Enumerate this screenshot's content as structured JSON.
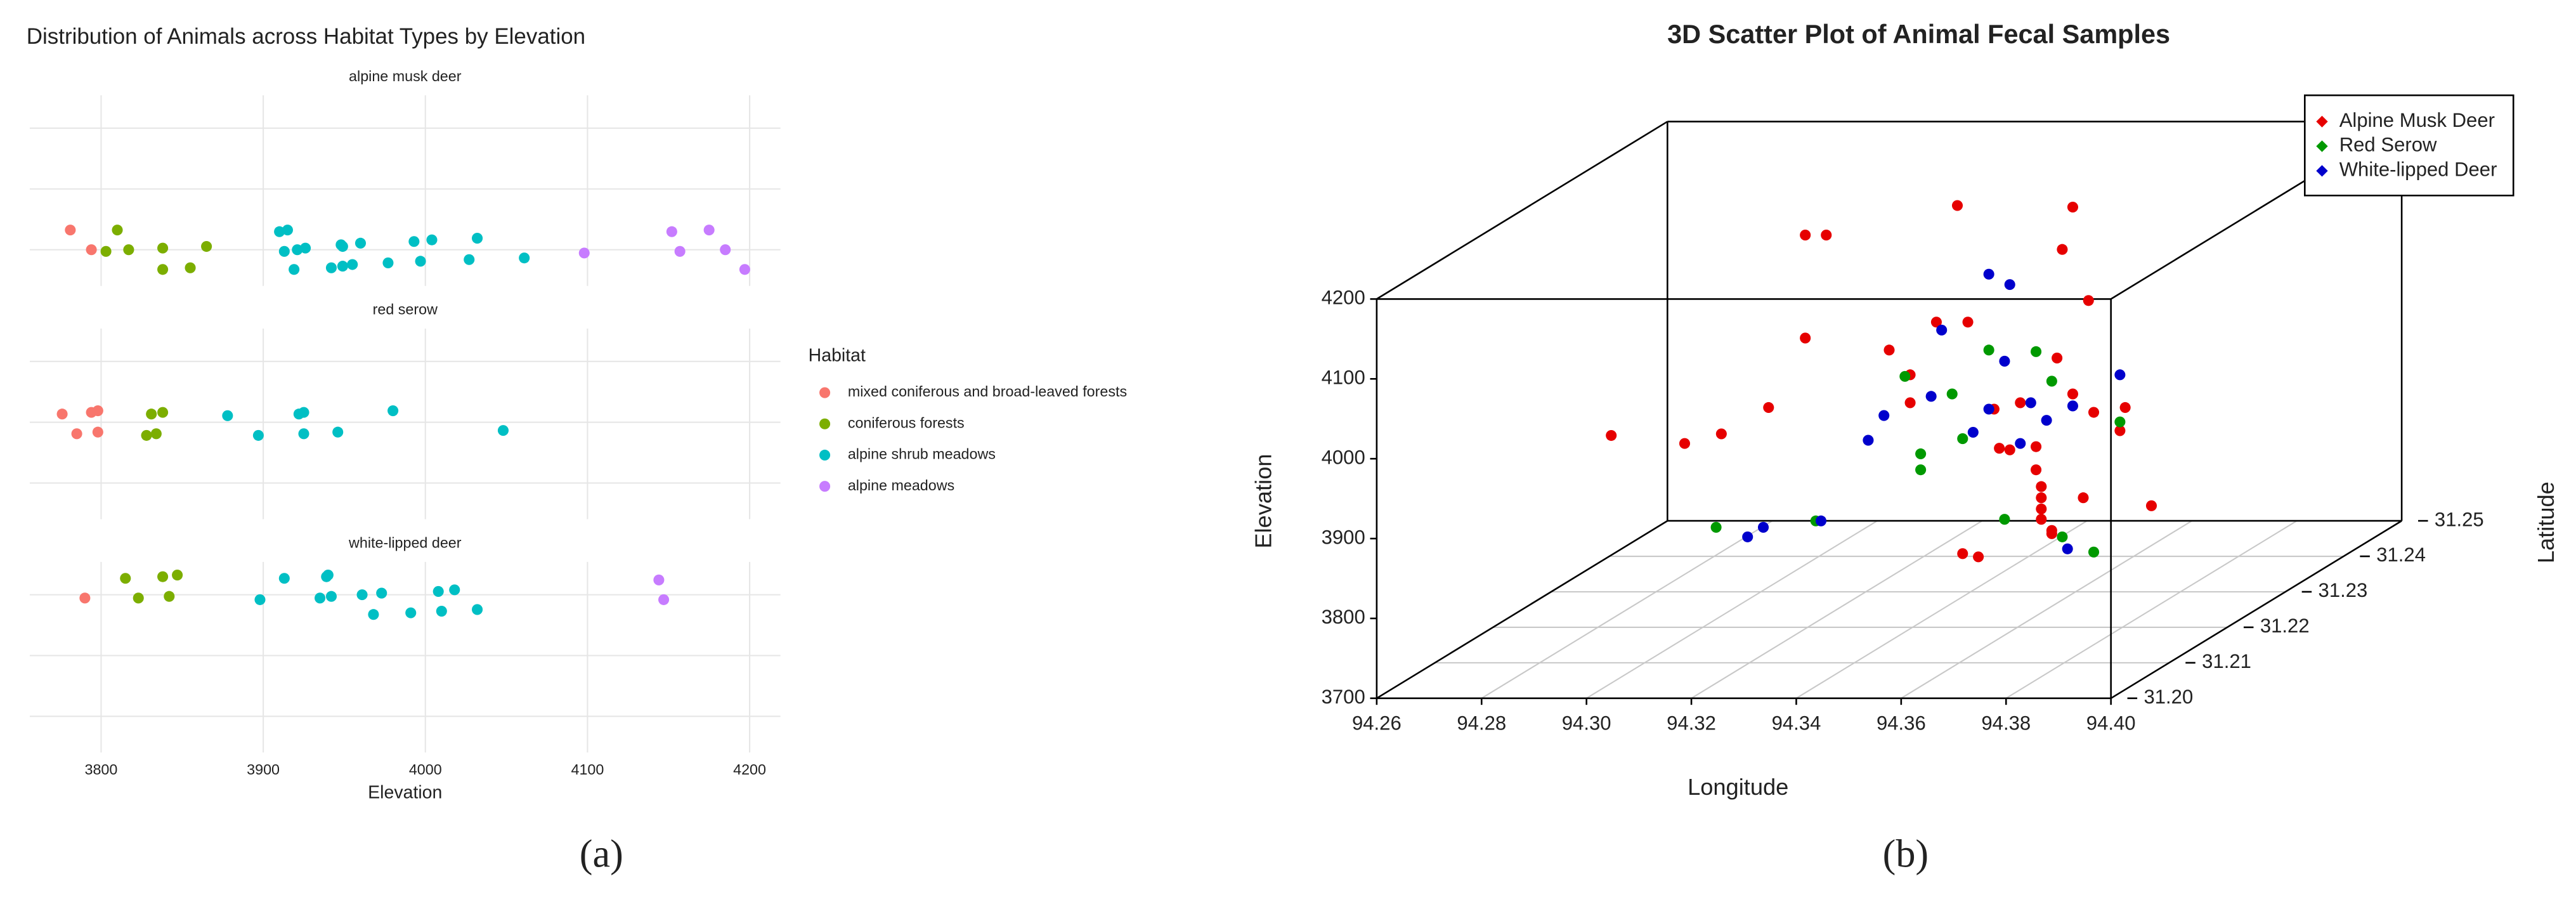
{
  "chart_data": [
    {
      "type": "strip",
      "title": "Distribution of Animals across Habitat Types by Elevation",
      "caption": "(a)",
      "x_label": "Elevation",
      "legend_title": "Habitat",
      "xlim": [
        3756,
        4219
      ],
      "xticks": [
        3800,
        3900,
        4000,
        4100,
        4200
      ],
      "grid": true,
      "series": [
        {
          "name": "mixed coniferous and broad-leaved forests",
          "color": "#F8766D"
        },
        {
          "name": "coniferous forests",
          "color": "#7CAE00"
        },
        {
          "name": "alpine shrub meadows",
          "color": "#00BFC4"
        },
        {
          "name": "alpine meadows",
          "color": "#C77CFF"
        }
      ],
      "facets": [
        {
          "title": "alpine musk deer",
          "values": [
            [
              3781,
              3794
            ],
            [
              3803,
              3810,
              3817,
              3838,
              3838,
              3855,
              3865
            ],
            [
              3910,
              3913,
              3915,
              3921,
              3919,
              3926,
              3942,
              3949,
              3949,
              3948,
              3955,
              3960,
              3977,
              3993,
              3997,
              4004,
              4027,
              4032,
              4061
            ],
            [
              4098,
              4152,
              4157,
              4175,
              4185,
              4197
            ]
          ]
        },
        {
          "title": "red serow",
          "values": [
            [
              3776,
              3785,
              3794,
              3798,
              3798
            ],
            [
              3828,
              3831,
              3834,
              3838
            ],
            [
              3878,
              3897,
              3922,
              3925,
              3925,
              3946,
              3980,
              4048
            ],
            []
          ]
        },
        {
          "title": "white-lipped deer",
          "values": [
            [
              3790
            ],
            [
              3815,
              3823,
              3838,
              3842,
              3847
            ],
            [
              3898,
              3913,
              3935,
              3939,
              3942,
              3940,
              3961,
              3968,
              3973,
              3991,
              4008,
              4010,
              4018,
              4032
            ],
            [
              4144,
              4147
            ]
          ]
        }
      ]
    },
    {
      "type": "scatter3d",
      "title": "3D Scatter Plot of Animal Fecal Samples",
      "caption": "(b)",
      "x_label": "Longitude",
      "y_label": "Latitude",
      "z_label": "Elevation",
      "xlim": [
        94.26,
        94.4
      ],
      "ylim": [
        31.2,
        31.25
      ],
      "zlim": [
        3700,
        4200
      ],
      "xticks": [
        94.26,
        94.28,
        {
          "value": 94.3,
          "label": "94.30"
        },
        94.32,
        94.34,
        94.36,
        94.38,
        {
          "value": 94.4,
          "label": "94.40"
        }
      ],
      "yticks": [
        {
          "value": 31.2,
          "label": "31.20"
        },
        31.21,
        31.22,
        31.23,
        31.24,
        31.25
      ],
      "zticks": [
        3700,
        3800,
        3900,
        4000,
        4100,
        4200
      ],
      "series": [
        {
          "name": "Alpine Musk Deer",
          "color": "#e60000",
          "x": [
            94.277,
            94.291,
            94.298,
            94.307,
            94.314,
            94.318,
            94.314,
            94.33,
            94.334,
            94.334,
            94.339,
            94.345,
            94.343,
            94.365,
            94.363,
            94.368,
            94.362,
            94.365,
            94.369,
            94.375,
            94.374,
            94.35,
            94.355,
            94.351,
            94.353,
            94.358,
            94.358,
            94.359,
            94.359,
            94.359,
            94.359,
            94.367,
            94.38,
            94.361,
            94.361,
            94.344,
            94.347
          ],
          "y": [
            31.225,
            31.225,
            31.225,
            31.225,
            31.225,
            31.225,
            31.225,
            31.225,
            31.225,
            31.225,
            31.225,
            31.225,
            31.225,
            31.225,
            31.225,
            31.225,
            31.225,
            31.225,
            31.225,
            31.225,
            31.225,
            31.225,
            31.225,
            31.225,
            31.225,
            31.225,
            31.225,
            31.225,
            31.225,
            31.225,
            31.225,
            31.225,
            31.225,
            31.225,
            31.225,
            31.225,
            31.225
          ],
          "z": [
            3918,
            3908,
            3920,
            3953,
            4169,
            4169,
            4040,
            4025,
            3959,
            3994,
            4060,
            4060,
            4206,
            4204,
            4151,
            4087,
            4015,
            3970,
            3947,
            3953,
            3924,
            3951,
            3959,
            3902,
            3900,
            3904,
            3875,
            3854,
            3840,
            3826,
            3813,
            3840,
            3830,
            3799,
            3795,
            3770,
            3766
          ]
        },
        {
          "name": "Red Serow",
          "color": "#009900",
          "x": [
            94.297,
            94.316,
            94.333,
            94.342,
            94.349,
            94.358,
            94.361,
            94.344,
            94.336,
            94.336,
            94.374,
            94.352,
            94.363,
            94.369
          ],
          "y": [
            31.225,
            31.225,
            31.225,
            31.225,
            31.225,
            31.225,
            31.225,
            31.225,
            31.225,
            31.225,
            31.225,
            31.225,
            31.225,
            31.225
          ],
          "z": [
            3803,
            3811,
            3992,
            3970,
            4025,
            4023,
            3986,
            3914,
            3875,
            3895,
            3935,
            3813,
            3791,
            3772
          ]
        },
        {
          "name": "White-lipped Deer",
          "color": "#0000cc",
          "x": [
            94.303,
            94.306,
            94.317,
            94.326,
            94.329,
            94.34,
            94.349,
            94.353,
            94.352,
            94.349,
            94.346,
            94.355,
            94.357,
            94.36,
            94.365,
            94.374,
            94.364,
            94.338
          ],
          "y": [
            31.225,
            31.225,
            31.225,
            31.225,
            31.225,
            31.225,
            31.225,
            31.225,
            31.225,
            31.225,
            31.225,
            31.225,
            31.225,
            31.225,
            31.225,
            31.225,
            31.225,
            31.225
          ],
          "z": [
            3791,
            3803,
            3811,
            3912,
            3943,
            4050,
            4120,
            4107,
            4011,
            3951,
            3922,
            3908,
            3959,
            3937,
            3955,
            3994,
            3776,
            3967
          ]
        }
      ]
    }
  ]
}
